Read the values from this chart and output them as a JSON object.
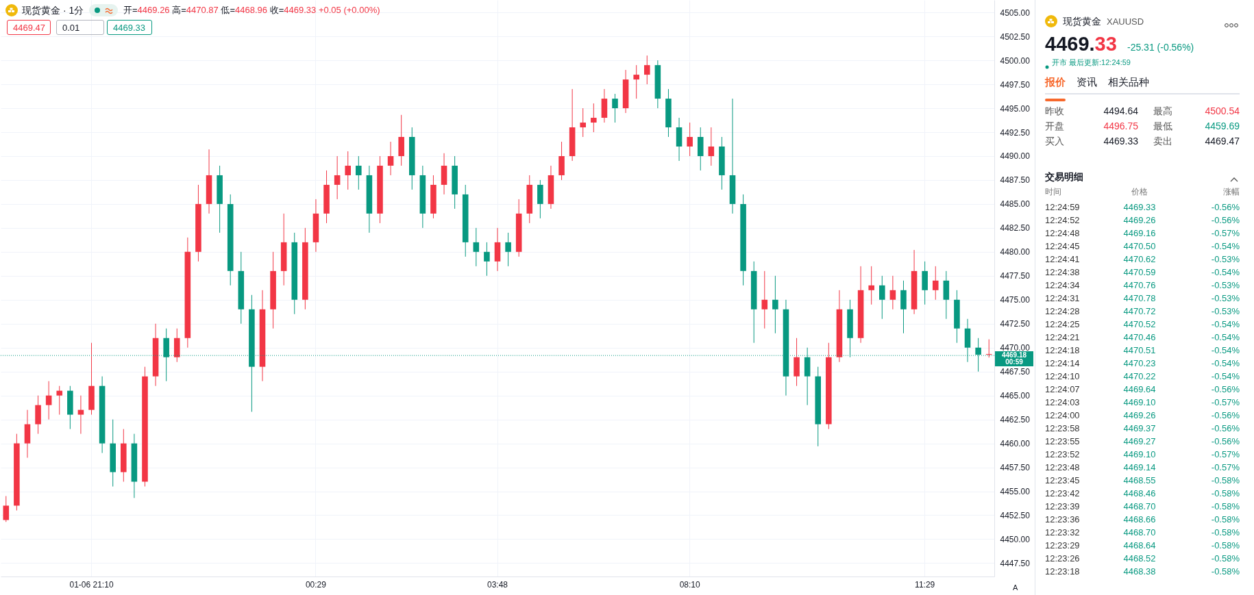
{
  "chart_data": {
    "type": "candlestick",
    "title": "现货黄金 · 1分",
    "categories": [
      null,
      null,
      null,
      null,
      null,
      null,
      null,
      null,
      "01-06 21:10",
      null,
      null,
      null,
      null,
      null,
      null,
      null,
      null,
      null,
      null,
      null,
      null,
      null,
      null,
      null,
      null,
      null,
      null,
      null,
      null,
      "00:29",
      null,
      null,
      null,
      null,
      null,
      null,
      null,
      null,
      null,
      null,
      null,
      null,
      null,
      null,
      null,
      null,
      "03:48",
      null,
      null,
      null,
      null,
      null,
      null,
      null,
      null,
      null,
      null,
      null,
      null,
      null,
      null,
      null,
      null,
      null,
      "08:10",
      null,
      null,
      null,
      null,
      null,
      null,
      null,
      null,
      null,
      null,
      null,
      null,
      null,
      null,
      null,
      null,
      null,
      null,
      null,
      null,
      null,
      "11:29",
      null,
      null,
      null,
      null,
      null,
      null
    ],
    "ohlc": [
      [
        4452.0,
        4454.5,
        4451.8,
        4453.5
      ],
      [
        4453.5,
        4461,
        4453,
        4460
      ],
      [
        4460,
        4463.5,
        4458.5,
        4462
      ],
      [
        4462,
        4465,
        4461,
        4464
      ],
      [
        4464,
        4466.5,
        4462.5,
        4465
      ],
      [
        4465,
        4466,
        4463,
        4465.5
      ],
      [
        4465.5,
        4466,
        4461.5,
        4463
      ],
      [
        4463,
        4465,
        4461,
        4463.5
      ],
      [
        4463.5,
        4470.5,
        4463,
        4466
      ],
      [
        4466,
        4467,
        4459,
        4460
      ],
      [
        4460,
        4462.5,
        4455.5,
        4457
      ],
      [
        4457,
        4461.5,
        4456,
        4460
      ],
      [
        4460,
        4461,
        4454.3,
        4456
      ],
      [
        4456,
        4468,
        4455.5,
        4467
      ],
      [
        4467,
        4472.5,
        4466,
        4471
      ],
      [
        4471,
        4472,
        4466.5,
        4469
      ],
      [
        4469,
        4472,
        4468.5,
        4471
      ],
      [
        4471,
        4481.5,
        4470,
        4480
      ],
      [
        4480,
        4487,
        4479,
        4485
      ],
      [
        4485,
        4490.7,
        4484,
        4488
      ],
      [
        4488,
        4489,
        4482,
        4485
      ],
      [
        4485,
        4486,
        4476.5,
        4478
      ],
      [
        4478,
        4480,
        4472.5,
        4474
      ],
      [
        4474,
        4475.5,
        4463.3,
        4468
      ],
      [
        4468,
        4476,
        4466.5,
        4474
      ],
      [
        4474,
        4480,
        4472,
        4478
      ],
      [
        4478,
        4484,
        4476.5,
        4481
      ],
      [
        4481,
        4482,
        4473.5,
        4475
      ],
      [
        4475,
        4482.5,
        4474,
        4481
      ],
      [
        4481,
        4485.5,
        4480,
        4484
      ],
      [
        4484,
        4488.5,
        4483,
        4487
      ],
      [
        4487,
        4490,
        4485.5,
        4488
      ],
      [
        4488,
        4490.5,
        4486.5,
        4489
      ],
      [
        4489,
        4490,
        4486.5,
        4488
      ],
      [
        4488,
        4489,
        4482,
        4484
      ],
      [
        4484,
        4490,
        4483,
        4489
      ],
      [
        4489,
        4491.5,
        4488,
        4490
      ],
      [
        4490,
        4494.3,
        4489,
        4492
      ],
      [
        4492,
        4493,
        4486.5,
        4488
      ],
      [
        4488,
        4489,
        4482.5,
        4484
      ],
      [
        4484,
        4488,
        4483.5,
        4487
      ],
      [
        4487,
        4490.3,
        4486,
        4489
      ],
      [
        4489,
        4490,
        4484.5,
        4486
      ],
      [
        4486,
        4487,
        4479.5,
        4481
      ],
      [
        4481,
        4482.5,
        4478.5,
        4480
      ],
      [
        4480,
        4481,
        4477.5,
        4479
      ],
      [
        4479,
        4482.5,
        4478,
        4481
      ],
      [
        4481,
        4482,
        4478.5,
        4480
      ],
      [
        4480,
        4485.5,
        4479.5,
        4484
      ],
      [
        4484,
        4488,
        4483,
        4487
      ],
      [
        4487,
        4487.5,
        4483.5,
        4485
      ],
      [
        4485,
        4489,
        4484.5,
        4488
      ],
      [
        4488,
        4491.5,
        4487.5,
        4490
      ],
      [
        4490,
        4497,
        4489.5,
        4493
      ],
      [
        4493,
        4495,
        4492,
        4493.5
      ],
      [
        4493.5,
        4495.5,
        4492.5,
        4494
      ],
      [
        4494,
        4497,
        4493.5,
        4496
      ],
      [
        4496,
        4496.5,
        4493.5,
        4495
      ],
      [
        4495,
        4499,
        4494.5,
        4498
      ],
      [
        4498,
        4499.5,
        4496,
        4498.5
      ],
      [
        4498.5,
        4500.5,
        4497.5,
        4499.5
      ],
      [
        4499.5,
        4500,
        4495,
        4496
      ],
      [
        4496,
        4497,
        4492,
        4493
      ],
      [
        4493,
        4494,
        4489.5,
        4491
      ],
      [
        4491,
        4493.5,
        4490,
        4492
      ],
      [
        4492,
        4493,
        4488.5,
        4490
      ],
      [
        4490,
        4493,
        4489,
        4491
      ],
      [
        4491,
        4492,
        4486.5,
        4488
      ],
      [
        4488,
        4496,
        4484,
        4485
      ],
      [
        4485,
        4486,
        4476.5,
        4478
      ],
      [
        4478,
        4479,
        4470.5,
        4474
      ],
      [
        4474,
        4478,
        4472,
        4475
      ],
      [
        4475,
        4477.5,
        4471.5,
        4474
      ],
      [
        4474,
        4475,
        4465,
        4467
      ],
      [
        4467,
        4471,
        4466,
        4469
      ],
      [
        4469,
        4470,
        4464,
        4467
      ],
      [
        4467,
        4468,
        4459.7,
        4462
      ],
      [
        4462,
        4470.5,
        4461.5,
        4469
      ],
      [
        4469,
        4476,
        4468.5,
        4474
      ],
      [
        4474,
        4475,
        4469,
        4471
      ],
      [
        4471,
        4478.5,
        4470.5,
        4476
      ],
      [
        4476,
        4478.5,
        4474.5,
        4476.5
      ],
      [
        4476.5,
        4477.5,
        4473,
        4475
      ],
      [
        4475,
        4477.5,
        4474,
        4476
      ],
      [
        4476,
        4477,
        4471.5,
        4474
      ],
      [
        4474,
        4480.2,
        4473.5,
        4478
      ],
      [
        4478,
        4479,
        4474.5,
        4476
      ],
      [
        4476,
        4478.5,
        4475,
        4477
      ],
      [
        4477,
        4478,
        4473,
        4475
      ],
      [
        4475,
        4476,
        4470.5,
        4472
      ],
      [
        4472,
        4473,
        4468.5,
        4470
      ],
      [
        4470,
        4471,
        4467.5,
        4469.26
      ],
      [
        4469.26,
        4470.87,
        4468.96,
        4469.33
      ]
    ],
    "colors": [
      "#f23645",
      "#f23645",
      "#f23645",
      "#f23645",
      "#f23645",
      "#f23645",
      "#089981",
      "#f23645",
      "#f23645",
      "#089981",
      "#089981",
      "#f23645",
      "#089981",
      "#f23645",
      "#f23645",
      "#089981",
      "#f23645",
      "#f23645",
      "#f23645",
      "#f23645",
      "#089981",
      "#089981",
      "#089981",
      "#089981",
      "#f23645",
      "#f23645",
      "#f23645",
      "#089981",
      "#f23645",
      "#f23645",
      "#f23645",
      "#f23645",
      "#f23645",
      "#089981",
      "#089981",
      "#f23645",
      "#f23645",
      "#f23645",
      "#089981",
      "#089981",
      "#f23645",
      "#f23645",
      "#089981",
      "#089981",
      "#089981",
      "#089981",
      "#f23645",
      "#089981",
      "#f23645",
      "#f23645",
      "#089981",
      "#f23645",
      "#f23645",
      "#f23645",
      "#f23645",
      "#f23645",
      "#f23645",
      "#089981",
      "#f23645",
      "#f23645",
      "#f23645",
      "#089981",
      "#089981",
      "#089981",
      "#f23645",
      "#089981",
      "#f23645",
      "#089981",
      "#089981",
      "#089981",
      "#089981",
      "#f23645",
      "#089981",
      "#089981",
      "#f23645",
      "#089981",
      "#089981",
      "#f23645",
      "#f23645",
      "#089981",
      "#f23645",
      "#f23645",
      "#089981",
      "#f23645",
      "#089981",
      "#f23645",
      "#089981",
      "#f23645",
      "#089981",
      "#089981",
      "#089981",
      "#089981",
      "#f23645"
    ],
    "ylim": [
      4446.1,
      4506.3
    ],
    "yticks": [
      {
        "value": 4447.5,
        "label": "4447.50"
      },
      {
        "value": 4450,
        "label": "4450.00"
      },
      {
        "value": 4452.5,
        "label": "4452.50"
      },
      {
        "value": 4455,
        "label": "4455.00"
      },
      {
        "value": 4457.5,
        "label": "4457.50"
      },
      {
        "value": 4460,
        "label": "4460.00"
      },
      {
        "value": 4462.5,
        "label": "4462.50"
      },
      {
        "value": 4465,
        "label": "4465.00"
      },
      {
        "value": 4467.5,
        "label": "4467.50"
      },
      {
        "value": 4470,
        "label": "4470.00"
      },
      {
        "value": 4472.5,
        "label": "4472.50"
      },
      {
        "value": 4475,
        "label": "4475.00"
      },
      {
        "value": 4477.5,
        "label": "4477.50"
      },
      {
        "value": 4480,
        "label": "4480.00"
      },
      {
        "value": 4482.5,
        "label": "4482.50"
      },
      {
        "value": 4485,
        "label": "4485.00"
      },
      {
        "value": 4487.5,
        "label": "4487.50"
      },
      {
        "value": 4490,
        "label": "4490.00"
      },
      {
        "value": 4492.5,
        "label": "4492.50"
      },
      {
        "value": 4495,
        "label": "4495.00"
      },
      {
        "value": 4497.5,
        "label": "4497.50"
      },
      {
        "value": 4500,
        "label": "4500.00"
      },
      {
        "value": 4502.5,
        "label": "4502.50"
      },
      {
        "value": 4505,
        "label": "4505.00"
      }
    ],
    "grid": true,
    "ref_lines": [
      {
        "axis": "y",
        "value": 4469.18,
        "label": "4469.18",
        "color": "#089981",
        "line_style": "dotted"
      }
    ],
    "annotations": [
      "开=4469.26 高=4470.87 低=4468.96 收=4469.33 +0.05 (+0.00%)",
      "4469.47",
      "0.01",
      "4469.33",
      "00:59",
      "现货黄金",
      "XAUUSD",
      "4469.33",
      "-25.31 (-0.56%)",
      "开市 最后更新:12:24:59",
      "报价",
      "资讯",
      "相关品种",
      "昨收",
      "4494.64",
      "最高",
      "4500.54",
      "开盘",
      "4496.75",
      "最低",
      "4459.69",
      "买入",
      "4469.33",
      "卖出",
      "4469.47",
      "交易明细",
      "时间",
      "价格",
      "涨幅",
      "12:24:59 4469.33 -0.56%",
      "12:24:52 4469.26 -0.56%",
      "12:24:48 4469.16 -0.57%",
      "12:24:45 4470.50 -0.54%",
      "12:24:41 4470.62 -0.53%",
      "12:24:38 4470.59 -0.54%",
      "12:24:34 4470.76 -0.53%",
      "12:24:31 4470.78 -0.53%",
      "12:24:28 4470.72 -0.53%",
      "12:24:25 4470.52 -0.54%",
      "12:24:21 4470.46 -0.54%",
      "12:24:18 4470.51 -0.54%",
      "12:24:14 4470.23 -0.54%",
      "12:24:10 4470.22 -0.54%",
      "12:24:07 4469.64 -0.56%",
      "12:24:03 4469.10 -0.57%",
      "12:24:00 4469.26 -0.56%",
      "12:23:58 4469.37 -0.56%",
      "12:23:55 4469.27 -0.56%",
      "12:23:52 4469.10 -0.57%",
      "12:23:48 4469.14 -0.57%",
      "12:23:45 4468.55 -0.58%",
      "12:23:42 4468.46 -0.58%",
      "12:23:39 4468.70 -0.58%",
      "12:23:36 4468.66 -0.58%",
      "12:23:32 4468.70 -0.58%",
      "12:23:29 4468.64 -0.58%",
      "12:23:26 4468.52 -0.58%",
      "12:23:18 4468.38 -0.58%",
      "A"
    ]
  }
}
